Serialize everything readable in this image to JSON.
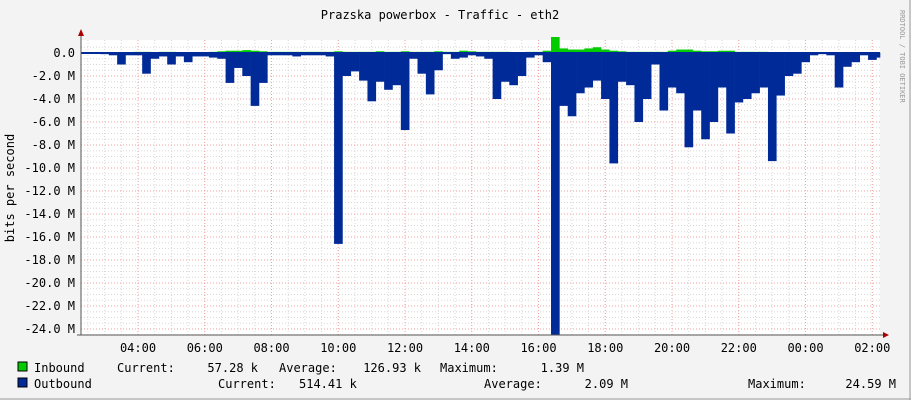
{
  "chart_data": {
    "type": "area",
    "title": "Prazska powerbox - Traffic - eth2",
    "ylabel": "bits per second",
    "xlabel": "",
    "watermark": "RRDTOOL / TOBI OETIKER",
    "ylim": [
      -24.5,
      1.0
    ],
    "y_unit": "M",
    "y_ticks": [
      "0.0",
      "-2.0 M",
      "-4.0 M",
      "-6.0 M",
      "-8.0 M",
      "-10.0 M",
      "-12.0 M",
      "-14.0 M",
      "-16.0 M",
      "-18.0 M",
      "-20.0 M",
      "-22.0 M",
      "-24.0 M"
    ],
    "y_tick_values": [
      0,
      -2,
      -4,
      -6,
      -8,
      -10,
      -12,
      -14,
      -16,
      -18,
      -20,
      -22,
      -24
    ],
    "x_ticks": [
      "04:00",
      "06:00",
      "08:00",
      "10:00",
      "12:00",
      "14:00",
      "16:00",
      "18:00",
      "20:00",
      "22:00",
      "00:00",
      "02:00"
    ],
    "grid": true,
    "x": [
      "02:30",
      "02:45",
      "03:00",
      "03:15",
      "03:30",
      "03:45",
      "04:00",
      "04:15",
      "04:30",
      "04:45",
      "05:00",
      "05:15",
      "05:30",
      "05:45",
      "06:00",
      "06:15",
      "06:30",
      "06:45",
      "07:00",
      "07:15",
      "07:30",
      "07:45",
      "08:00",
      "08:15",
      "08:30",
      "08:45",
      "09:00",
      "09:15",
      "09:30",
      "09:45",
      "10:00",
      "10:15",
      "10:30",
      "10:45",
      "11:00",
      "11:15",
      "11:30",
      "11:45",
      "12:00",
      "12:15",
      "12:30",
      "12:45",
      "13:00",
      "13:15",
      "13:30",
      "13:45",
      "14:00",
      "14:15",
      "14:30",
      "14:45",
      "15:00",
      "15:15",
      "15:30",
      "15:45",
      "16:00",
      "16:15",
      "16:30",
      "16:45",
      "17:00",
      "17:15",
      "17:30",
      "17:45",
      "18:00",
      "18:15",
      "18:30",
      "18:45",
      "19:00",
      "19:15",
      "19:30",
      "19:45",
      "20:00",
      "20:15",
      "20:30",
      "20:45",
      "21:00",
      "21:15",
      "21:30",
      "21:45",
      "22:00",
      "22:15",
      "22:30",
      "22:45",
      "23:00",
      "23:15",
      "23:30",
      "23:45",
      "00:00",
      "00:15",
      "00:30",
      "00:45",
      "01:00",
      "01:15",
      "01:30",
      "01:45",
      "02:00",
      "02:15"
    ],
    "series": [
      {
        "name": "Inbound",
        "color": "#00cc00",
        "values": [
          0.05,
          0.05,
          0.05,
          0.05,
          0.05,
          0.05,
          0.1,
          0.1,
          0.05,
          0.1,
          0.1,
          0.05,
          0.05,
          0.05,
          0.05,
          0.1,
          0.15,
          0.2,
          0.2,
          0.25,
          0.2,
          0.15,
          0.1,
          0.1,
          0.1,
          0.1,
          0.1,
          0.1,
          0.1,
          0.1,
          0.15,
          0.1,
          0.1,
          0.1,
          0.1,
          0.15,
          0.1,
          0.1,
          0.15,
          0.1,
          0.1,
          0.1,
          0.15,
          0.1,
          0.1,
          0.2,
          0.15,
          0.1,
          0.1,
          0.1,
          0.1,
          0.05,
          0.05,
          0.1,
          0.1,
          0.2,
          1.39,
          0.4,
          0.3,
          0.3,
          0.4,
          0.5,
          0.3,
          0.2,
          0.15,
          0.1,
          0.1,
          0.1,
          0.1,
          0.1,
          0.2,
          0.3,
          0.3,
          0.2,
          0.15,
          0.15,
          0.2,
          0.2,
          0.1,
          0.1,
          0.1,
          0.1,
          0.05,
          0.05,
          0.05,
          0.05,
          0.05,
          0.05,
          0.05,
          0.05,
          0.05,
          0.05,
          0.05,
          0.05,
          0.05,
          0.05
        ]
      },
      {
        "name": "Outbound",
        "color": "#002a97",
        "values": [
          -0.2,
          -0.2,
          -0.1,
          -0.2,
          -1.0,
          -0.2,
          -0.2,
          -1.8,
          -0.5,
          -0.3,
          -1.0,
          -0.3,
          -0.8,
          -0.3,
          -0.3,
          -0.4,
          -0.5,
          -2.6,
          -1.3,
          -2.0,
          -4.6,
          -2.6,
          -0.2,
          -0.2,
          -0.2,
          -0.3,
          -0.2,
          -0.2,
          -0.2,
          -0.3,
          -16.6,
          -2.0,
          -1.6,
          -2.4,
          -4.2,
          -2.5,
          -3.2,
          -2.8,
          -6.7,
          -0.5,
          -1.8,
          -3.6,
          -1.5,
          -0.1,
          -0.5,
          -0.4,
          -0.2,
          -0.3,
          -0.5,
          -4.0,
          -2.5,
          -2.8,
          -2.0,
          -0.4,
          -0.2,
          -0.8,
          -24.5,
          -4.6,
          -5.5,
          -3.5,
          -3.0,
          -2.4,
          -4.0,
          -9.6,
          -2.5,
          -2.8,
          -6.0,
          -4.0,
          -1.0,
          -5.0,
          -3.0,
          -3.5,
          -8.2,
          -5.0,
          -7.5,
          -6.0,
          -3.0,
          -7.0,
          -4.3,
          -4.0,
          -3.5,
          -3.0,
          -9.4,
          -3.7,
          -2.0,
          -1.8,
          -0.8,
          -0.2,
          -0.1,
          -0.2,
          -3.0,
          -1.2,
          -0.8,
          -0.2,
          -0.6,
          -0.4
        ]
      }
    ]
  },
  "legend": {
    "inbound": {
      "label": "Inbound",
      "current_label": "Current:",
      "current": "57.28 k",
      "average_label": "Average:",
      "average": "126.93 k",
      "maximum_label": "Maximum:",
      "maximum": "1.39 M"
    },
    "outbound": {
      "label": "Outbound",
      "current_label": "Current:",
      "current": "514.41 k",
      "average_label": "Average:",
      "average": "2.09 M",
      "maximum_label": "Maximum:",
      "maximum": "24.59 M"
    }
  }
}
